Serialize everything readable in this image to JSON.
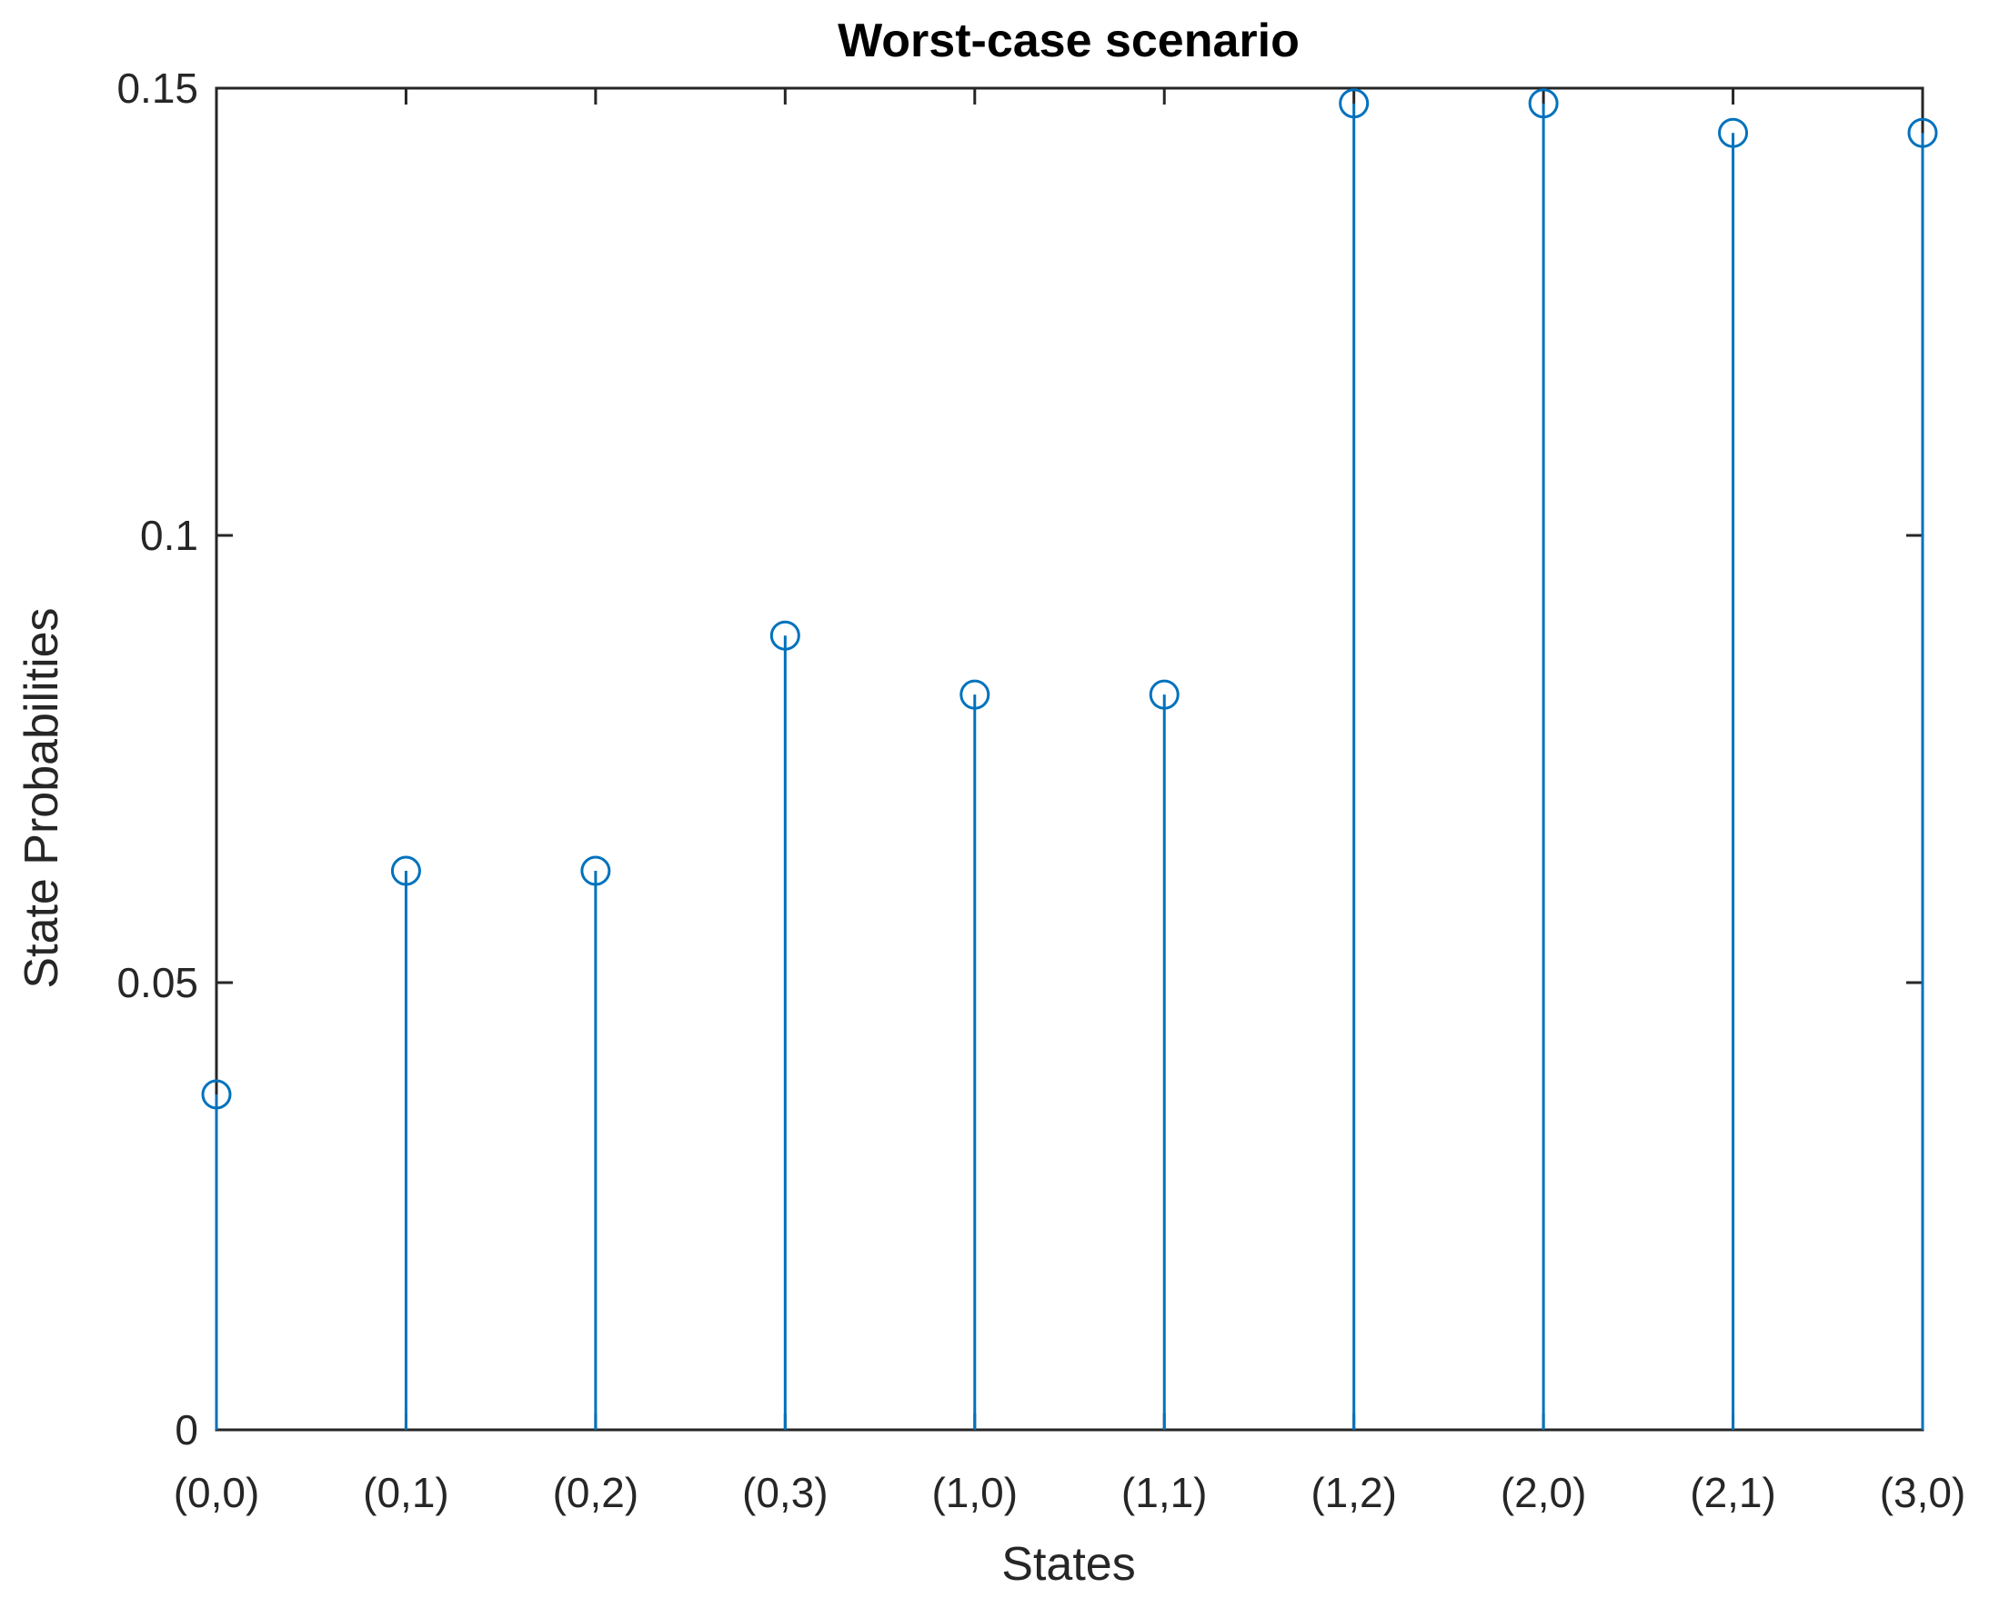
{
  "chart_data": {
    "type": "stem",
    "title": "Worst-case  scenario",
    "xlabel": "States",
    "ylabel": "State Probabilities",
    "categories": [
      "(0,0)",
      "(0,1)",
      "(0,2)",
      "(0,3)",
      "(1,0)",
      "(1,1)",
      "(1,2)",
      "(2,0)",
      "(2,1)",
      "(3,0)"
    ],
    "values": [
      0.0375,
      0.0625,
      0.0625,
      0.0888,
      0.0822,
      0.0822,
      0.1483,
      0.1483,
      0.145,
      0.145
    ],
    "ylim": [
      0,
      0.15
    ],
    "yticks": [
      0,
      0.05,
      0.1,
      0.15
    ],
    "ytick_labels": [
      "0",
      "0.05",
      "0.1",
      "0.15"
    ],
    "grid": false,
    "color": "#0072BD"
  }
}
